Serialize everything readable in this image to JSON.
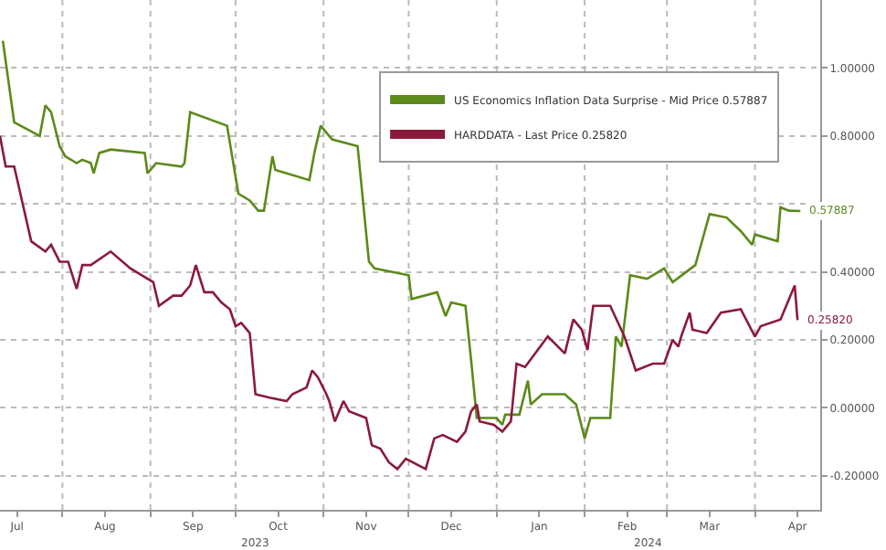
{
  "chart_data": {
    "type": "line",
    "annotations": [
      "2023",
      "2024"
    ],
    "xlim": [
      "2023-07-10",
      "2024-04-24"
    ],
    "ylim": [
      -0.3,
      1.2
    ],
    "yticks": [
      {
        "value": -0.2,
        "label": "-0.20000"
      },
      {
        "value": 0,
        "label": "0.00000"
      },
      {
        "value": 0.2,
        "label": "0.20000"
      },
      {
        "value": 0.4,
        "label": "0.40000"
      },
      {
        "value": 0.6,
        "label": null
      },
      {
        "value": 0.8,
        "label": "0.80000"
      },
      {
        "value": 1.0,
        "label": "1.00000"
      }
    ],
    "xticks": [
      {
        "value": "2023-07-16",
        "label": "Jul"
      },
      {
        "value": "2023-08-01",
        "label": null
      },
      {
        "value": "2023-08-16",
        "label": "Aug"
      },
      {
        "value": "2023-09-01",
        "label": null
      },
      {
        "value": "2023-09-16",
        "label": "Sep"
      },
      {
        "value": "2023-10-01",
        "label": null
      },
      {
        "value": "2023-10-16",
        "label": "Oct"
      },
      {
        "value": "2023-11-01",
        "label": null
      },
      {
        "value": "2023-11-16",
        "label": "Nov"
      },
      {
        "value": "2023-12-01",
        "label": null
      },
      {
        "value": "2023-12-16",
        "label": "Dec"
      },
      {
        "value": "2024-01-01",
        "label": null
      },
      {
        "value": "2024-01-16",
        "label": "Jan"
      },
      {
        "value": "2024-02-01",
        "label": null
      },
      {
        "value": "2024-02-16",
        "label": "Feb"
      },
      {
        "value": "2024-03-01",
        "label": null
      },
      {
        "value": "2024-03-16",
        "label": "Mar"
      },
      {
        "value": "2024-04-01",
        "label": null
      },
      {
        "value": "2024-04-16",
        "label": "Apr"
      }
    ],
    "grid": true,
    "legend": "top right",
    "marker": "none",
    "line_style": "solid",
    "series": [
      {
        "name": "US Economics Inflation Data Surprise - Mid Price 0.57887",
        "color": "#5b8a1a",
        "x": [
          "2023-07-11",
          "2023-07-15",
          "2023-07-24",
          "2023-07-26",
          "2023-07-28",
          "2023-07-31",
          "2023-08-02",
          "2023-08-06",
          "2023-08-08",
          "2023-08-11",
          "2023-08-12",
          "2023-08-14",
          "2023-08-18",
          "2023-08-30",
          "2023-08-31",
          "2023-09-03",
          "2023-09-12",
          "2023-09-13",
          "2023-09-15",
          "2023-09-28",
          "2023-10-02",
          "2023-10-06",
          "2023-10-09",
          "2023-10-11",
          "2023-10-14",
          "2023-10-15",
          "2023-10-27",
          "2023-10-29",
          "2023-10-31",
          "2023-11-04",
          "2023-11-13",
          "2023-11-17",
          "2023-11-19",
          "2023-12-01",
          "2023-12-02",
          "2023-12-11",
          "2023-12-14",
          "2023-12-16",
          "2023-12-21",
          "2023-12-23",
          "2023-12-25",
          "2024-01-01",
          "2024-01-03",
          "2024-01-04",
          "2024-01-09",
          "2024-01-12",
          "2024-01-13",
          "2024-01-17",
          "2024-01-25",
          "2024-01-29",
          "2024-02-01",
          "2024-02-03",
          "2024-02-10",
          "2024-02-12",
          "2024-02-14",
          "2024-02-17",
          "2024-02-23",
          "2024-02-29",
          "2024-03-03",
          "2024-03-11",
          "2024-03-16",
          "2024-03-22",
          "2024-03-27",
          "2024-03-31",
          "2024-04-01",
          "2024-04-09",
          "2024-04-10",
          "2024-04-13",
          "2024-04-17"
        ],
        "values": [
          1.08,
          0.84,
          0.8,
          0.89,
          0.87,
          0.77,
          0.74,
          0.72,
          0.73,
          0.72,
          0.69,
          0.75,
          0.76,
          0.75,
          0.69,
          0.72,
          0.71,
          0.72,
          0.87,
          0.83,
          0.63,
          0.61,
          0.58,
          0.58,
          0.74,
          0.7,
          0.67,
          0.76,
          0.83,
          0.79,
          0.77,
          0.43,
          0.41,
          0.39,
          0.32,
          0.34,
          0.27,
          0.31,
          0.3,
          0.14,
          -0.03,
          -0.03,
          -0.05,
          -0.02,
          -0.02,
          0.08,
          0.01,
          0.04,
          0.04,
          0.01,
          -0.09,
          -0.03,
          -0.03,
          0.21,
          0.18,
          0.39,
          0.38,
          0.41,
          0.37,
          0.42,
          0.57,
          0.56,
          0.52,
          0.48,
          0.51,
          0.49,
          0.59,
          0.58,
          0.57887
        ],
        "value_labels": [
          null,
          null,
          null,
          null,
          null,
          null,
          null,
          null,
          null,
          null,
          null,
          null,
          null,
          null,
          null,
          null,
          null,
          null,
          null,
          null,
          null,
          null,
          null,
          null,
          null,
          null,
          null,
          null,
          null,
          null,
          null,
          null,
          null,
          null,
          null,
          null,
          null,
          null,
          null,
          null,
          null,
          null,
          null,
          null,
          null,
          null,
          null,
          null,
          null,
          null,
          null,
          null,
          null,
          null,
          null,
          null,
          null,
          null,
          null,
          null,
          null,
          null,
          null,
          null,
          null,
          null,
          null,
          null,
          "0.57887"
        ]
      },
      {
        "name": "HARDDATA - Last Price 0.25820",
        "color": "#8b1a3a",
        "x": [
          "2023-07-10",
          "2023-07-12",
          "2023-07-15",
          "2023-07-21",
          "2023-07-26",
          "2023-07-28",
          "2023-07-31",
          "2023-08-03",
          "2023-08-06",
          "2023-08-08",
          "2023-08-11",
          "2023-08-18",
          "2023-08-25",
          "2023-09-02",
          "2023-09-04",
          "2023-09-09",
          "2023-09-12",
          "2023-09-15",
          "2023-09-17",
          "2023-09-20",
          "2023-09-23",
          "2023-09-26",
          "2023-09-29",
          "2023-10-01",
          "2023-10-03",
          "2023-10-06",
          "2023-10-08",
          "2023-10-13",
          "2023-10-19",
          "2023-10-21",
          "2023-10-26",
          "2023-10-28",
          "2023-10-30",
          "2023-11-02",
          "2023-11-03",
          "2023-11-05",
          "2023-11-08",
          "2023-11-10",
          "2023-11-16",
          "2023-11-18",
          "2023-11-21",
          "2023-11-24",
          "2023-11-27",
          "2023-11-30",
          "2023-12-07",
          "2023-12-10",
          "2023-12-13",
          "2023-12-18",
          "2023-12-21",
          "2023-12-23",
          "2023-12-25",
          "2023-12-26",
          "2023-12-31",
          "2024-01-03",
          "2024-01-06",
          "2024-01-08",
          "2024-01-11",
          "2024-01-19",
          "2024-01-25",
          "2024-01-28",
          "2024-01-31",
          "2024-02-02",
          "2024-02-04",
          "2024-02-10",
          "2024-02-15",
          "2024-02-19",
          "2024-02-25",
          "2024-02-29",
          "2024-03-03",
          "2024-03-05",
          "2024-03-06",
          "2024-03-09",
          "2024-03-10",
          "2024-03-15",
          "2024-03-20",
          "2024-03-27",
          "2024-04-01",
          "2024-04-03",
          "2024-04-10",
          "2024-04-15",
          "2024-04-16"
        ],
        "values": [
          0.8,
          0.71,
          0.71,
          0.49,
          0.46,
          0.48,
          0.43,
          0.43,
          0.35,
          0.42,
          0.42,
          0.46,
          0.41,
          0.37,
          0.3,
          0.33,
          0.33,
          0.36,
          0.42,
          0.34,
          0.34,
          0.31,
          0.29,
          0.24,
          0.25,
          0.22,
          0.04,
          0.03,
          0.02,
          0.04,
          0.06,
          0.11,
          0.09,
          0.04,
          0.02,
          -0.04,
          0.02,
          -0.01,
          -0.03,
          -0.11,
          -0.12,
          -0.16,
          -0.18,
          -0.15,
          -0.18,
          -0.09,
          -0.08,
          -0.1,
          -0.07,
          -0.01,
          0.01,
          -0.04,
          -0.05,
          -0.07,
          -0.04,
          0.13,
          0.12,
          0.21,
          0.16,
          0.26,
          0.23,
          0.17,
          0.3,
          0.3,
          0.21,
          0.11,
          0.13,
          0.13,
          0.2,
          0.18,
          0.21,
          0.28,
          0.23,
          0.22,
          0.28,
          0.29,
          0.21,
          0.24,
          0.26,
          0.36,
          0.2582
        ],
        "value_labels": [
          null,
          null,
          null,
          null,
          null,
          null,
          null,
          null,
          null,
          null,
          null,
          null,
          null,
          null,
          null,
          null,
          null,
          null,
          null,
          null,
          null,
          null,
          null,
          null,
          null,
          null,
          null,
          null,
          null,
          null,
          null,
          null,
          null,
          null,
          null,
          null,
          null,
          null,
          null,
          null,
          null,
          null,
          null,
          null,
          null,
          null,
          null,
          null,
          null,
          null,
          null,
          null,
          null,
          null,
          null,
          null,
          null,
          null,
          null,
          null,
          null,
          null,
          null,
          null,
          null,
          null,
          null,
          null,
          null,
          null,
          null,
          null,
          null,
          null,
          null,
          null,
          null,
          null,
          null,
          null,
          "0.25820"
        ]
      }
    ]
  }
}
